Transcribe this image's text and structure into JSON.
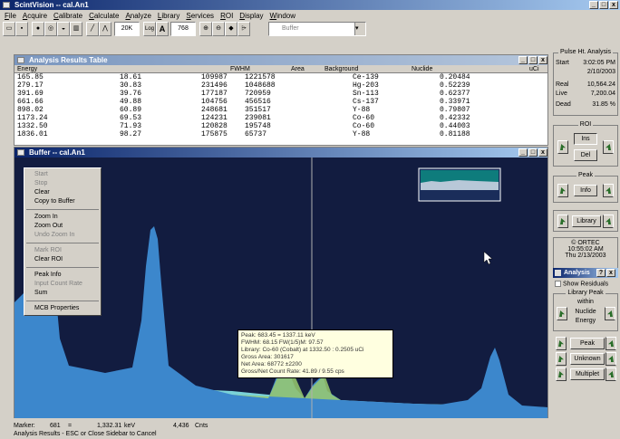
{
  "app": {
    "title": "ScintVision -- cal.An1"
  },
  "menu": [
    "File",
    "Acquire",
    "Calibrate",
    "Calculate",
    "Analyze",
    "Library",
    "Services",
    "ROI",
    "Display",
    "Window"
  ],
  "toolbar": {
    "zoom_value": "20K",
    "mode_label": "A",
    "channel_value": "768",
    "buffer_select": "Buffer",
    "log_label": "Log"
  },
  "results": {
    "title": "Analysis Results Table",
    "columns": [
      "Energy",
      "FWHM",
      "Area",
      "Background",
      "Nuclide",
      "uCi"
    ],
    "rows": [
      [
        "165.85",
        "18.61",
        "109987",
        "1221578",
        "Ce-139",
        "0.20484"
      ],
      [
        "279.17",
        "30.83",
        "231496",
        "1048688",
        "Hg-203",
        "0.52239"
      ],
      [
        "391.69",
        "39.76",
        "177187",
        "720959",
        "Sn-113",
        "0.62377"
      ],
      [
        "661.66",
        "49.88",
        "104756",
        "456516",
        "Cs-137",
        "0.33971"
      ],
      [
        "898.02",
        "60.89",
        "248681",
        "351517",
        "Y-88",
        "0.79807"
      ],
      [
        "1173.24",
        "69.53",
        "124231",
        "239081",
        "Co-60",
        "0.42332"
      ],
      [
        "1332.50",
        "71.93",
        "120828",
        "195748",
        "Co-60",
        "0.44003"
      ],
      [
        "1836.01",
        "98.27",
        "175875",
        "65737",
        "Y-88",
        "0.81188"
      ]
    ]
  },
  "buffer": {
    "title": "Buffer -- cal.An1"
  },
  "context_menu": [
    {
      "label": "Start",
      "enabled": false
    },
    {
      "label": "Stop",
      "enabled": false
    },
    {
      "label": "Clear",
      "enabled": true
    },
    {
      "label": "Copy to Buffer",
      "enabled": true
    },
    {
      "sep": true
    },
    {
      "label": "Zoom In",
      "enabled": true
    },
    {
      "label": "Zoom Out",
      "enabled": true
    },
    {
      "label": "Undo Zoom In",
      "enabled": false
    },
    {
      "sep": true
    },
    {
      "label": "Mark ROI",
      "enabled": false
    },
    {
      "label": "Clear ROI",
      "enabled": true
    },
    {
      "sep": true
    },
    {
      "label": "Peak Info",
      "enabled": true
    },
    {
      "label": "Input Count Rate",
      "enabled": false
    },
    {
      "label": "Sum",
      "enabled": true
    },
    {
      "sep": true
    },
    {
      "label": "MCB Properties",
      "enabled": true
    }
  ],
  "peak_info": [
    "Peak: 683.45 = 1337.11 keV",
    "FWHM: 68.15  FW(1/5)M: 97.57",
    "Library: Co-60 (Cobalt) at 1332.50 : 0.2505 uCi",
    "Gross Area: 301617",
    "Net Area: 68772 ±2200",
    "Gross/Net Count Rate: 41.89 / 9.55 cps"
  ],
  "sidebar": {
    "pha_title": "Pulse Ht. Analysis",
    "start_label": "Start",
    "start_time": "3:02:05 PM",
    "start_date": "2/10/2003",
    "real_label": "Real",
    "real_value": "10,564.24",
    "live_label": "Live",
    "live_value": "7,200.04",
    "dead_label": "Dead",
    "dead_value": "31.85 %",
    "roi_title": "ROI",
    "ins_label": "Ins",
    "del_label": "Del",
    "peak_title": "Peak",
    "info_label": "Info",
    "library_label": "Library",
    "vendor": "© ORTEC",
    "clock_time": "10:55:02 AM",
    "clock_day": "Thu",
    "clock_date": "2/13/2003",
    "analysis_title": "Analysis",
    "show_residuals": "Show Residuals",
    "libpeak_title": "Library Peak",
    "within": "within",
    "nuclide_label": "Nuclide",
    "energy_label": "Energy",
    "peak_label": "Peak",
    "unknown_label": "Unknown",
    "multiplet_label": "Multiplet"
  },
  "status": {
    "marker_label": "Marker:",
    "marker_channel": "681",
    "eq": "=",
    "marker_energy": "1,332.31",
    "energy_unit": "keV",
    "counts": "4,436",
    "counts_unit": "Cnts",
    "message": "Analysis Results - ESC or Close Sidebar to Cancel"
  }
}
